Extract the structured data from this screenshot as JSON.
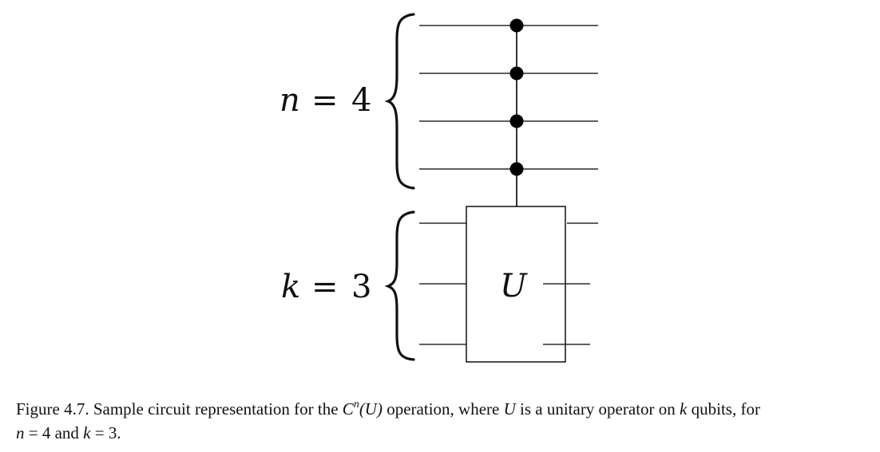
{
  "diagram": {
    "labels": {
      "control_group": {
        "symbol": "n",
        "relation": "=",
        "value": "4"
      },
      "target_group": {
        "symbol": "k",
        "relation": "=",
        "value": "3"
      }
    },
    "gate": {
      "label": "U"
    },
    "control_qubit_count": 4,
    "target_qubit_count": 3,
    "colors": {
      "ink": "#111111",
      "wire": "#000000",
      "background": "#ffffff"
    }
  },
  "caption": {
    "prefix": "Figure 4.7. Sample circuit representation for the ",
    "op_base": "C",
    "op_exp": "n",
    "op_arg": "(U)",
    "mid1": " operation, where ",
    "u_symbol": "U",
    "mid2": " is a unitary operator on ",
    "k_symbol": "k",
    "mid3": " qubits, for",
    "n_symbol": "n",
    "eq_n": " = 4 and ",
    "k_symbol2": "k",
    "eq_k": " = 3."
  }
}
